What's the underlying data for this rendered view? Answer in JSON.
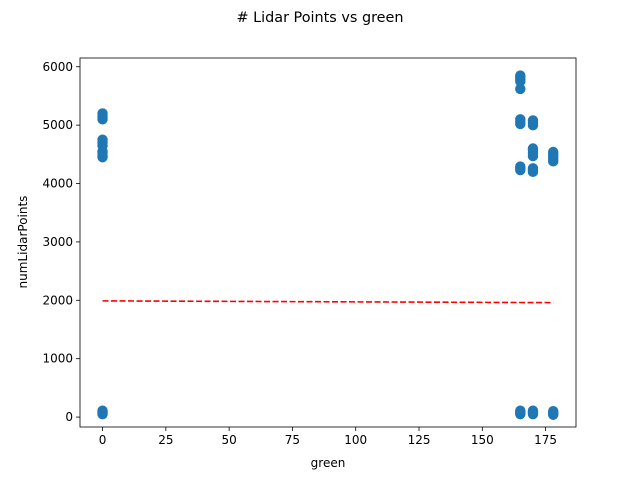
{
  "chart_data": {
    "type": "scatter",
    "title": "# Lidar Points vs green",
    "xlabel": "green",
    "ylabel": "numLidarPoints",
    "xlim": [
      -8.9,
      187.0
    ],
    "ylim": [
      -170,
      6150
    ],
    "xticks": [
      0,
      25,
      50,
      75,
      100,
      125,
      150,
      175
    ],
    "yticks": [
      0,
      1000,
      2000,
      3000,
      4000,
      5000,
      6000
    ],
    "grid": false,
    "legend": "none",
    "colors": {
      "points": "#1f77b4",
      "trend": "#ff0000"
    },
    "series": [
      {
        "kind": "scatter",
        "points": [
          [
            0,
            50
          ],
          [
            0,
            70
          ],
          [
            0,
            90
          ],
          [
            0,
            110
          ],
          [
            0,
            4450
          ],
          [
            0,
            4480
          ],
          [
            0,
            4520
          ],
          [
            0,
            4550
          ],
          [
            0,
            4650
          ],
          [
            0,
            4700
          ],
          [
            0,
            4750
          ],
          [
            0,
            5100
          ],
          [
            0,
            5150
          ],
          [
            0,
            5200
          ],
          [
            165,
            50
          ],
          [
            165,
            70
          ],
          [
            165,
            90
          ],
          [
            165,
            110
          ],
          [
            165,
            4230
          ],
          [
            165,
            4260
          ],
          [
            165,
            4290
          ],
          [
            165,
            5020
          ],
          [
            165,
            5060
          ],
          [
            165,
            5100
          ],
          [
            165,
            5620
          ],
          [
            165,
            5750
          ],
          [
            165,
            5790
          ],
          [
            165,
            5820
          ],
          [
            165,
            5850
          ],
          [
            170,
            50
          ],
          [
            170,
            70
          ],
          [
            170,
            90
          ],
          [
            170,
            110
          ],
          [
            170,
            4200
          ],
          [
            170,
            4230
          ],
          [
            170,
            4260
          ],
          [
            170,
            4470
          ],
          [
            170,
            4520
          ],
          [
            170,
            4570
          ],
          [
            170,
            4600
          ],
          [
            170,
            5000
          ],
          [
            170,
            5040
          ],
          [
            170,
            5080
          ],
          [
            178,
            40
          ],
          [
            178,
            60
          ],
          [
            178,
            80
          ],
          [
            178,
            100
          ],
          [
            178,
            4380
          ],
          [
            178,
            4420
          ],
          [
            178,
            4460
          ],
          [
            178,
            4500
          ],
          [
            178,
            4540
          ]
        ]
      },
      {
        "kind": "line",
        "style": "dashed",
        "points": [
          [
            0,
            1990
          ],
          [
            178,
            1960
          ]
        ]
      }
    ]
  }
}
